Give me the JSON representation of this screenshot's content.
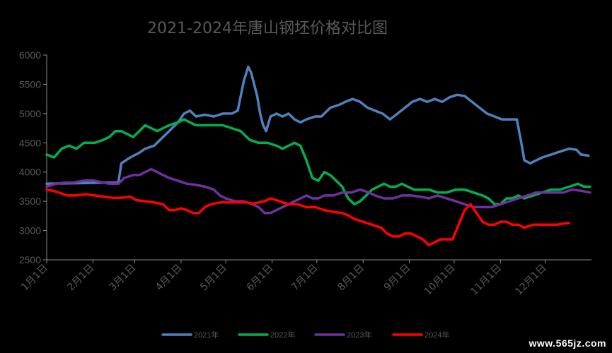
{
  "watermark": "www.565jz.com",
  "chart_data": {
    "type": "line",
    "title": "2021-2024年唐山钢坯价格对比图",
    "xlabel": "",
    "ylabel": "",
    "ylim": [
      2500,
      6000
    ],
    "yticks": [
      2500,
      3000,
      3500,
      4000,
      4500,
      5000,
      5500,
      6000
    ],
    "xlim": [
      0,
      365
    ],
    "x_tick_labels": [
      "1月1日",
      "2月1日",
      "3月1日",
      "4月1日",
      "5月1日",
      "6月1日",
      "7月1日",
      "8月1日",
      "9月1日",
      "10月1日",
      "11月1日",
      "12月1日"
    ],
    "x_tick_days": [
      0,
      31,
      59,
      90,
      120,
      151,
      181,
      212,
      243,
      273,
      304,
      334
    ],
    "grid": false,
    "legend_position": "bottom",
    "series": [
      {
        "name": "2021年",
        "color": "#4F81BD",
        "points": [
          [
            0,
            3800
          ],
          [
            20,
            3810
          ],
          [
            40,
            3820
          ],
          [
            48,
            3820
          ],
          [
            50,
            4150
          ],
          [
            56,
            4250
          ],
          [
            62,
            4330
          ],
          [
            66,
            4400
          ],
          [
            72,
            4450
          ],
          [
            78,
            4600
          ],
          [
            82,
            4700
          ],
          [
            88,
            4850
          ],
          [
            92,
            5000
          ],
          [
            96,
            5050
          ],
          [
            100,
            4950
          ],
          [
            106,
            4980
          ],
          [
            112,
            4950
          ],
          [
            118,
            5000
          ],
          [
            124,
            5000
          ],
          [
            128,
            5050
          ],
          [
            132,
            5550
          ],
          [
            135,
            5800
          ],
          [
            137,
            5700
          ],
          [
            139,
            5500
          ],
          [
            141,
            5300
          ],
          [
            143,
            5000
          ],
          [
            145,
            4800
          ],
          [
            147,
            4700
          ],
          [
            150,
            4950
          ],
          [
            154,
            5000
          ],
          [
            158,
            4950
          ],
          [
            162,
            5000
          ],
          [
            166,
            4900
          ],
          [
            170,
            4850
          ],
          [
            174,
            4900
          ],
          [
            180,
            4950
          ],
          [
            184,
            4950
          ],
          [
            190,
            5100
          ],
          [
            196,
            5150
          ],
          [
            200,
            5200
          ],
          [
            205,
            5250
          ],
          [
            210,
            5200
          ],
          [
            215,
            5100
          ],
          [
            220,
            5050
          ],
          [
            225,
            5000
          ],
          [
            230,
            4900
          ],
          [
            235,
            5000
          ],
          [
            240,
            5100
          ],
          [
            245,
            5200
          ],
          [
            250,
            5250
          ],
          [
            255,
            5200
          ],
          [
            260,
            5250
          ],
          [
            265,
            5200
          ],
          [
            270,
            5280
          ],
          [
            275,
            5320
          ],
          [
            280,
            5300
          ],
          [
            285,
            5200
          ],
          [
            290,
            5100
          ],
          [
            295,
            5000
          ],
          [
            300,
            4950
          ],
          [
            305,
            4900
          ],
          [
            310,
            4900
          ],
          [
            315,
            4900
          ],
          [
            318,
            4500
          ],
          [
            320,
            4200
          ],
          [
            324,
            4150
          ],
          [
            328,
            4200
          ],
          [
            332,
            4250
          ],
          [
            338,
            4300
          ],
          [
            344,
            4350
          ],
          [
            350,
            4400
          ],
          [
            355,
            4380
          ],
          [
            358,
            4300
          ],
          [
            363,
            4280
          ]
        ]
      },
      {
        "name": "2022年",
        "color": "#00B050",
        "points": [
          [
            0,
            4300
          ],
          [
            5,
            4250
          ],
          [
            10,
            4400
          ],
          [
            15,
            4450
          ],
          [
            20,
            4400
          ],
          [
            25,
            4500
          ],
          [
            32,
            4500
          ],
          [
            38,
            4550
          ],
          [
            42,
            4600
          ],
          [
            46,
            4700
          ],
          [
            50,
            4700
          ],
          [
            54,
            4650
          ],
          [
            58,
            4600
          ],
          [
            62,
            4700
          ],
          [
            66,
            4800
          ],
          [
            70,
            4750
          ],
          [
            74,
            4700
          ],
          [
            78,
            4750
          ],
          [
            82,
            4800
          ],
          [
            88,
            4850
          ],
          [
            92,
            4900
          ],
          [
            96,
            4850
          ],
          [
            100,
            4800
          ],
          [
            106,
            4800
          ],
          [
            112,
            4800
          ],
          [
            118,
            4800
          ],
          [
            124,
            4750
          ],
          [
            130,
            4700
          ],
          [
            136,
            4550
          ],
          [
            142,
            4500
          ],
          [
            148,
            4500
          ],
          [
            154,
            4450
          ],
          [
            158,
            4400
          ],
          [
            162,
            4450
          ],
          [
            166,
            4500
          ],
          [
            170,
            4450
          ],
          [
            174,
            4200
          ],
          [
            178,
            3900
          ],
          [
            182,
            3850
          ],
          [
            186,
            4000
          ],
          [
            190,
            3950
          ],
          [
            194,
            3850
          ],
          [
            198,
            3750
          ],
          [
            202,
            3550
          ],
          [
            206,
            3450
          ],
          [
            210,
            3500
          ],
          [
            214,
            3600
          ],
          [
            218,
            3700
          ],
          [
            222,
            3750
          ],
          [
            226,
            3800
          ],
          [
            230,
            3750
          ],
          [
            234,
            3750
          ],
          [
            238,
            3800
          ],
          [
            242,
            3750
          ],
          [
            246,
            3700
          ],
          [
            250,
            3700
          ],
          [
            256,
            3700
          ],
          [
            262,
            3650
          ],
          [
            268,
            3650
          ],
          [
            274,
            3700
          ],
          [
            280,
            3700
          ],
          [
            286,
            3650
          ],
          [
            292,
            3600
          ],
          [
            296,
            3550
          ],
          [
            300,
            3450
          ],
          [
            304,
            3450
          ],
          [
            308,
            3550
          ],
          [
            312,
            3550
          ],
          [
            316,
            3600
          ],
          [
            320,
            3550
          ],
          [
            326,
            3600
          ],
          [
            332,
            3650
          ],
          [
            338,
            3700
          ],
          [
            344,
            3700
          ],
          [
            350,
            3750
          ],
          [
            356,
            3800
          ],
          [
            360,
            3750
          ],
          [
            364,
            3750
          ]
        ]
      },
      {
        "name": "2023年",
        "color": "#7030A0",
        "points": [
          [
            0,
            3750
          ],
          [
            6,
            3800
          ],
          [
            12,
            3820
          ],
          [
            18,
            3820
          ],
          [
            24,
            3850
          ],
          [
            30,
            3860
          ],
          [
            36,
            3830
          ],
          [
            42,
            3800
          ],
          [
            48,
            3800
          ],
          [
            52,
            3900
          ],
          [
            58,
            3950
          ],
          [
            62,
            3950
          ],
          [
            66,
            4000
          ],
          [
            70,
            4050
          ],
          [
            74,
            4000
          ],
          [
            78,
            3950
          ],
          [
            82,
            3900
          ],
          [
            88,
            3850
          ],
          [
            94,
            3800
          ],
          [
            100,
            3780
          ],
          [
            106,
            3750
          ],
          [
            112,
            3700
          ],
          [
            116,
            3600
          ],
          [
            120,
            3550
          ],
          [
            126,
            3500
          ],
          [
            132,
            3500
          ],
          [
            138,
            3450
          ],
          [
            142,
            3400
          ],
          [
            146,
            3300
          ],
          [
            150,
            3300
          ],
          [
            154,
            3350
          ],
          [
            158,
            3400
          ],
          [
            162,
            3450
          ],
          [
            166,
            3500
          ],
          [
            170,
            3550
          ],
          [
            174,
            3600
          ],
          [
            178,
            3550
          ],
          [
            182,
            3550
          ],
          [
            186,
            3600
          ],
          [
            192,
            3600
          ],
          [
            198,
            3650
          ],
          [
            204,
            3650
          ],
          [
            210,
            3700
          ],
          [
            216,
            3650
          ],
          [
            220,
            3600
          ],
          [
            226,
            3550
          ],
          [
            232,
            3550
          ],
          [
            238,
            3600
          ],
          [
            244,
            3600
          ],
          [
            250,
            3580
          ],
          [
            256,
            3550
          ],
          [
            262,
            3600
          ],
          [
            268,
            3550
          ],
          [
            274,
            3500
          ],
          [
            280,
            3450
          ],
          [
            286,
            3400
          ],
          [
            292,
            3400
          ],
          [
            298,
            3400
          ],
          [
            304,
            3450
          ],
          [
            310,
            3500
          ],
          [
            316,
            3550
          ],
          [
            322,
            3600
          ],
          [
            328,
            3650
          ],
          [
            334,
            3650
          ],
          [
            340,
            3650
          ],
          [
            346,
            3650
          ],
          [
            352,
            3700
          ],
          [
            358,
            3680
          ],
          [
            364,
            3650
          ]
        ]
      },
      {
        "name": "2024年",
        "color": "#FF0000",
        "points": [
          [
            0,
            3700
          ],
          [
            4,
            3680
          ],
          [
            8,
            3650
          ],
          [
            14,
            3600
          ],
          [
            20,
            3600
          ],
          [
            26,
            3620
          ],
          [
            32,
            3600
          ],
          [
            38,
            3580
          ],
          [
            44,
            3560
          ],
          [
            50,
            3560
          ],
          [
            56,
            3580
          ],
          [
            60,
            3520
          ],
          [
            66,
            3500
          ],
          [
            72,
            3480
          ],
          [
            78,
            3450
          ],
          [
            82,
            3350
          ],
          [
            86,
            3350
          ],
          [
            90,
            3380
          ],
          [
            94,
            3350
          ],
          [
            98,
            3300
          ],
          [
            102,
            3300
          ],
          [
            106,
            3400
          ],
          [
            110,
            3450
          ],
          [
            116,
            3480
          ],
          [
            122,
            3480
          ],
          [
            128,
            3480
          ],
          [
            134,
            3480
          ],
          [
            138,
            3460
          ],
          [
            142,
            3480
          ],
          [
            146,
            3500
          ],
          [
            150,
            3550
          ],
          [
            156,
            3500
          ],
          [
            162,
            3450
          ],
          [
            168,
            3450
          ],
          [
            174,
            3400
          ],
          [
            180,
            3400
          ],
          [
            186,
            3350
          ],
          [
            192,
            3320
          ],
          [
            198,
            3300
          ],
          [
            202,
            3260
          ],
          [
            206,
            3200
          ],
          [
            212,
            3150
          ],
          [
            218,
            3100
          ],
          [
            224,
            3050
          ],
          [
            228,
            2950
          ],
          [
            232,
            2900
          ],
          [
            236,
            2900
          ],
          [
            240,
            2950
          ],
          [
            244,
            2950
          ],
          [
            248,
            2900
          ],
          [
            252,
            2850
          ],
          [
            256,
            2750
          ],
          [
            260,
            2800
          ],
          [
            264,
            2850
          ],
          [
            268,
            2850
          ],
          [
            272,
            2850
          ],
          [
            276,
            3100
          ],
          [
            280,
            3350
          ],
          [
            284,
            3450
          ],
          [
            288,
            3300
          ],
          [
            292,
            3150
          ],
          [
            296,
            3100
          ],
          [
            300,
            3100
          ],
          [
            304,
            3150
          ],
          [
            308,
            3150
          ],
          [
            312,
            3100
          ],
          [
            316,
            3100
          ],
          [
            320,
            3050
          ],
          [
            326,
            3100
          ],
          [
            332,
            3100
          ],
          [
            338,
            3100
          ],
          [
            342,
            3100
          ],
          [
            346,
            3120
          ],
          [
            350,
            3130
          ]
        ]
      }
    ]
  }
}
